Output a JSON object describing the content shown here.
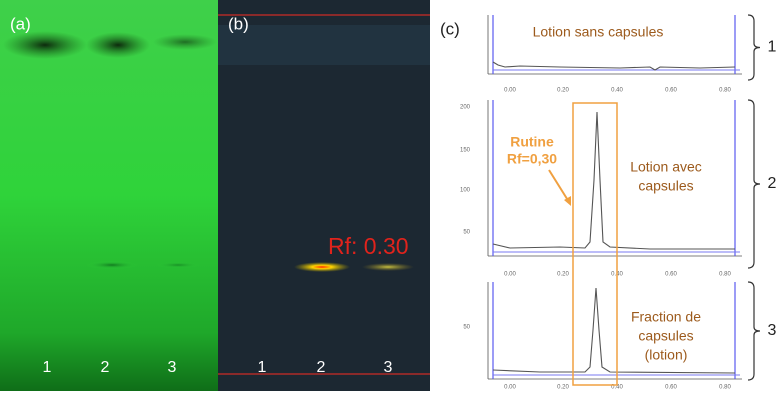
{
  "panels": [
    {
      "label": "(a)",
      "lanes": [
        "1",
        "2",
        "3"
      ]
    },
    {
      "label": "(b)",
      "lanes": [
        "1",
        "2",
        "3"
      ],
      "annotation": "Rf: 0.30"
    },
    {
      "label": "(c)",
      "callout": [
        "Rutine",
        "Rf=0,30"
      ],
      "traces": [
        {
          "title": [
            "Lotion sans capsules"
          ],
          "number": "1",
          "xticks": [
            "0.00",
            "0.20",
            "0.40",
            "0.60",
            "0.80"
          ]
        },
        {
          "title": [
            "Lotion avec",
            "capsules"
          ],
          "number": "2",
          "yticks": [
            "200",
            "150",
            "100",
            "50"
          ],
          "xticks": [
            "0.00",
            "0.20",
            "0.40",
            "0.60",
            "0.80"
          ]
        },
        {
          "title": [
            "Fraction de",
            "capsules",
            "(lotion)"
          ],
          "number": "3",
          "yticks": [
            "50"
          ],
          "xticks": [
            "0.00",
            "0.20",
            "0.40",
            "0.60",
            "0.80"
          ]
        }
      ]
    }
  ]
}
